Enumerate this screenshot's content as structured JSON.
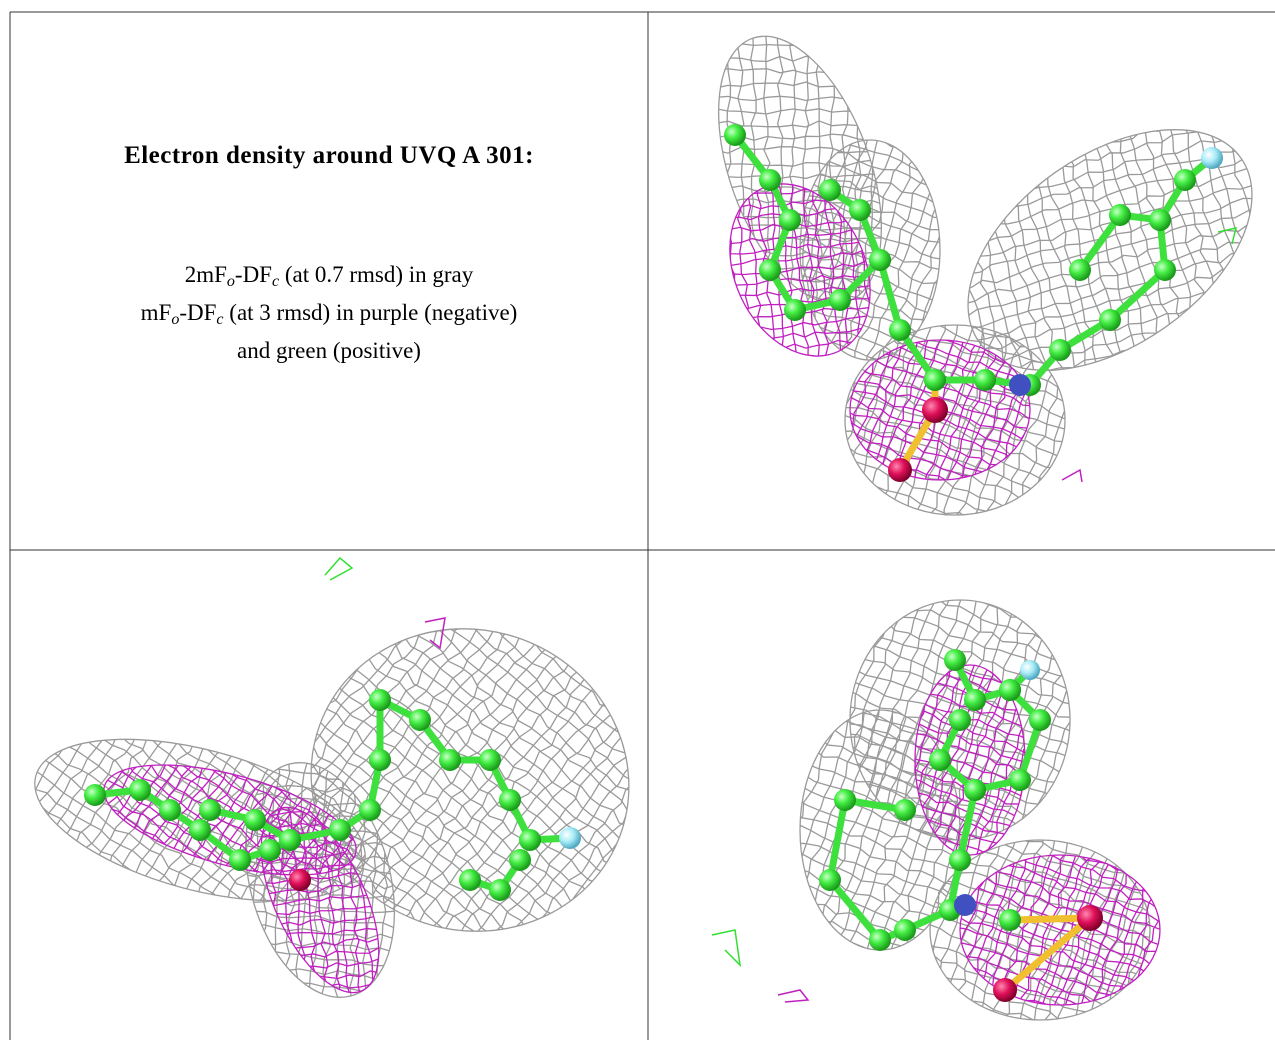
{
  "panel_text": {
    "title": "Electron density around UVQ A 301:",
    "lines": [
      [
        {
          "text": "2mF"
        },
        {
          "sub": "o"
        },
        {
          "text": "-DF"
        },
        {
          "sub": "c"
        },
        {
          "text": " (at 0.7 rmsd) in gray"
        }
      ],
      [
        {
          "text": "mF"
        },
        {
          "sub": "o"
        },
        {
          "text": "-DF"
        },
        {
          "sub": "c"
        },
        {
          "text": " (at 3 rmsd) in purple (negative)"
        }
      ],
      [
        {
          "text": "and green (positive)"
        }
      ]
    ]
  }
}
